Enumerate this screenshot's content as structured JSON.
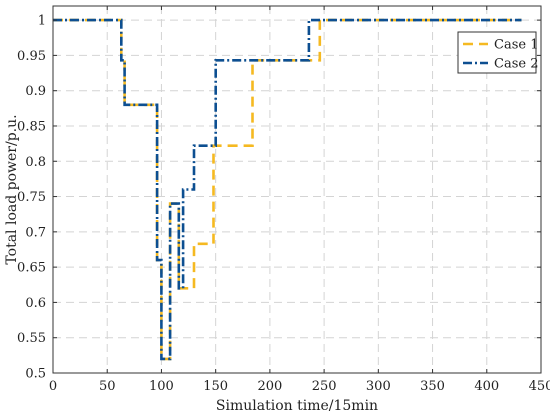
{
  "chart_data": {
    "type": "line",
    "title": "",
    "xlabel": "Simulation time/15min",
    "ylabel": "Total load power/p.u.",
    "xlim": [
      0,
      450
    ],
    "ylim": [
      0.5,
      1.02
    ],
    "xticks": [
      0,
      50,
      100,
      150,
      200,
      250,
      300,
      350,
      400,
      450
    ],
    "yticks": [
      0.5,
      0.55,
      0.6,
      0.65,
      0.7,
      0.75,
      0.8,
      0.85,
      0.9,
      0.95,
      1
    ],
    "ytick_labels": [
      "0.5",
      "0.55",
      "0.6",
      "0.65",
      "0.7",
      "0.75",
      "0.8",
      "0.85",
      "0.9",
      "0.95",
      "1"
    ],
    "grid": true,
    "legend_position": "top-right",
    "series": [
      {
        "name": "Case 1",
        "color": "#f5b921",
        "dash": "dashed",
        "points": [
          [
            0,
            1
          ],
          [
            63,
            1
          ],
          [
            63,
            0.943
          ],
          [
            66,
            0.943
          ],
          [
            66,
            0.88
          ],
          [
            96,
            0.88
          ],
          [
            96,
            0.66
          ],
          [
            100,
            0.66
          ],
          [
            100,
            0.52
          ],
          [
            108,
            0.52
          ],
          [
            108,
            0.74
          ],
          [
            116,
            0.74
          ],
          [
            116,
            0.62
          ],
          [
            130,
            0.62
          ],
          [
            130,
            0.683
          ],
          [
            148,
            0.683
          ],
          [
            148,
            0.822
          ],
          [
            184,
            0.822
          ],
          [
            184,
            0.943
          ],
          [
            246,
            0.943
          ],
          [
            246,
            1
          ],
          [
            432,
            1
          ]
        ]
      },
      {
        "name": "Case 2",
        "color": "#0d4f91",
        "dash": "dash-dot",
        "points": [
          [
            0,
            1
          ],
          [
            63,
            1
          ],
          [
            63,
            0.943
          ],
          [
            66,
            0.943
          ],
          [
            66,
            0.88
          ],
          [
            96,
            0.88
          ],
          [
            96,
            0.66
          ],
          [
            100,
            0.66
          ],
          [
            100,
            0.52
          ],
          [
            108,
            0.52
          ],
          [
            108,
            0.74
          ],
          [
            116,
            0.74
          ],
          [
            116,
            0.62
          ],
          [
            120,
            0.62
          ],
          [
            120,
            0.76
          ],
          [
            130,
            0.76
          ],
          [
            130,
            0.822
          ],
          [
            150,
            0.822
          ],
          [
            150,
            0.943
          ],
          [
            236,
            0.943
          ],
          [
            236,
            1
          ],
          [
            432,
            1
          ]
        ]
      }
    ]
  }
}
